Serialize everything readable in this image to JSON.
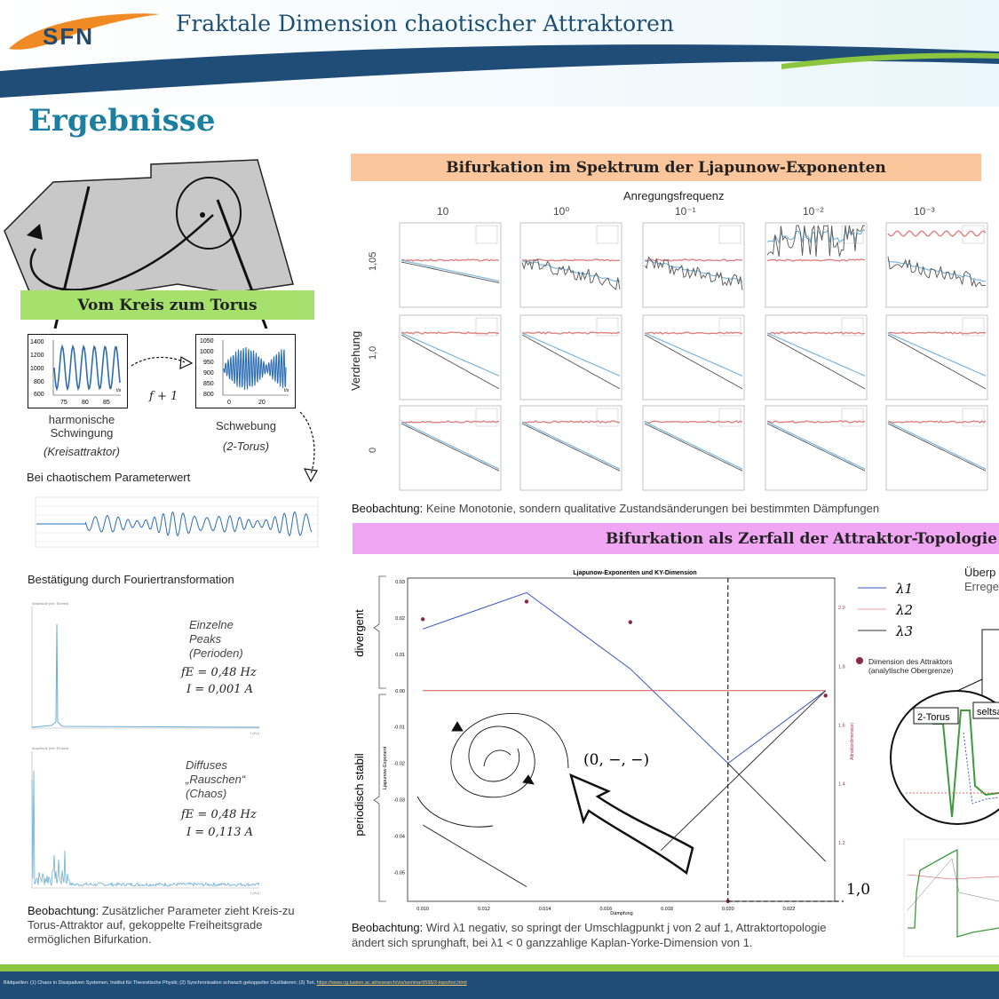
{
  "header": {
    "logo_text": "SFN",
    "title": "Fraktale Dimension chaotischer Attraktoren"
  },
  "section_title": "Ergebnisse",
  "left": {
    "green_heading": "Vom Kreis zum Torus",
    "plot1_yticks": [
      "1400",
      "1200",
      "1000",
      "800",
      "600"
    ],
    "plot1_xticks": [
      "75",
      "80",
      "85"
    ],
    "plot1_unit": "t/s",
    "plot2_yticks": [
      "1050",
      "1000",
      "950",
      "900",
      "850",
      "800"
    ],
    "plot2_xticks": [
      "0",
      "20"
    ],
    "plot2_unit": "t/s",
    "arrow_label": "f + 1",
    "label1_line1": "harmonische",
    "label1_line2": "Schwingung",
    "label1_italic": "(Kreisattraktor)",
    "label2": "Schwebung",
    "label2_italic": "(2-Torus)",
    "chaotic_caption": "Bei chaotischem Parameterwert",
    "fourier_caption": "Bestätigung durch Fouriertransformation",
    "fft1_ylabel": "Amplitude (bel. Einheit)",
    "fft1_text": [
      "Einzelne",
      "Peaks",
      "(Perioden)"
    ],
    "fft1_eq1": "fE = 0,48 Hz",
    "fft1_eq2": "I = 0,001 A",
    "fft2_ylabel": "Amplitude (bel. Einheit)",
    "fft2_text": [
      "Diffuses",
      "„Rauschen“",
      "(Chaos)"
    ],
    "fft2_eq1": "fE = 0,48 Hz",
    "fft2_eq2": "I = 0,113 A",
    "fft_xunit": "f (Hz)",
    "obs_label": "Beobachtung:",
    "obs_text": "Zusätzlicher Parameter zieht Kreis-zu Torus-Attraktor auf, gekoppelte Freiheitsgrade ermöglichen Bifurkation."
  },
  "right": {
    "orange_heading": "Bifurkation im Spektrum der Ljapunow-Exponenten",
    "freq_label": "Anregungsfrequenz",
    "freq_values": [
      "10",
      "10⁰",
      "10⁻¹",
      "10⁻²",
      "10⁻³"
    ],
    "rotation_label": "Verdrehung",
    "row_values": [
      "1,05",
      "1,0",
      "0"
    ],
    "obs1_label": "Beobachtung:",
    "obs1_text": "Keine Monotonie, sondern qualitative Zustandsänderungen bei bestimmten Dämpfungen",
    "pink_heading": "Bifurkation als Zerfall der Attraktor-Topologie",
    "side_label_top": "divergent",
    "side_label_bottom": "periodisch stabil",
    "annotation": "(0, −, −)",
    "dashed_value": "1,0",
    "legend": [
      "λ1",
      "λ2",
      "λ3"
    ],
    "dim_legend_line1": "Dimension des Attraktors",
    "dim_legend_line2": "(analytische Obergrenze)",
    "overview_title": "Überp",
    "overview_sub": "Errege",
    "zoom_label1": "2-Torus",
    "zoom_label2": "seltsa",
    "obs2_label": "Beobachtung:",
    "obs2_text_a": "Wird λ1 negativ, so springt der Umschlagpunkt j von 2 auf 1, Attraktortopologie",
    "obs2_text_b": "ändert sich sprunghaft, bei λ1 < 0 ganzzahlige Kaplan-Yorke-Dimension von 1."
  },
  "chart_data": {
    "type": "line",
    "title": "Ljapunow-Exponenten und KY-Dimension",
    "xlabel": "Dämpfung",
    "ylabel": "Ljapunow-Exponent",
    "y2label": "Attraktordimension",
    "x_ticks": [
      "0.010",
      "0.012",
      "0.014",
      "0.016",
      "0.018",
      "0.020",
      "0.022"
    ],
    "y_ticks": [
      "0.03",
      "0.02",
      "0.01",
      "0.00",
      "-0.01",
      "-0.02",
      "-0.03",
      "-0.04",
      "-0.05"
    ],
    "y2_ticks": [
      "2.0",
      "1.8",
      "1.6",
      "1.4",
      "1.2"
    ],
    "xlim": [
      0.0095,
      0.0235
    ],
    "ylim": [
      -0.058,
      0.031
    ],
    "y2lim": [
      1.0,
      2.1
    ],
    "x": [
      0.01,
      0.0134,
      0.0168,
      0.02,
      0.0232
    ],
    "series": [
      {
        "name": "λ1",
        "color": "#3a52c4",
        "values": [
          0.017,
          0.027,
          0.006,
          -0.02,
          0.0
        ]
      },
      {
        "name": "λ2",
        "color": "#d25050",
        "values": [
          0.0,
          0.0,
          0.0,
          0.0,
          0.0
        ]
      },
      {
        "name": "λ3",
        "color": "#333333",
        "values": [
          -0.037,
          -0.054,
          null,
          -0.02,
          -0.047
        ]
      }
    ],
    "dimension_points": {
      "x": [
        0.01,
        0.0134,
        0.0168,
        0.0232,
        0.02
      ],
      "values": [
        1.96,
        2.02,
        1.95,
        1.7,
        1.0
      ]
    },
    "vline_x": 0.02
  }
}
